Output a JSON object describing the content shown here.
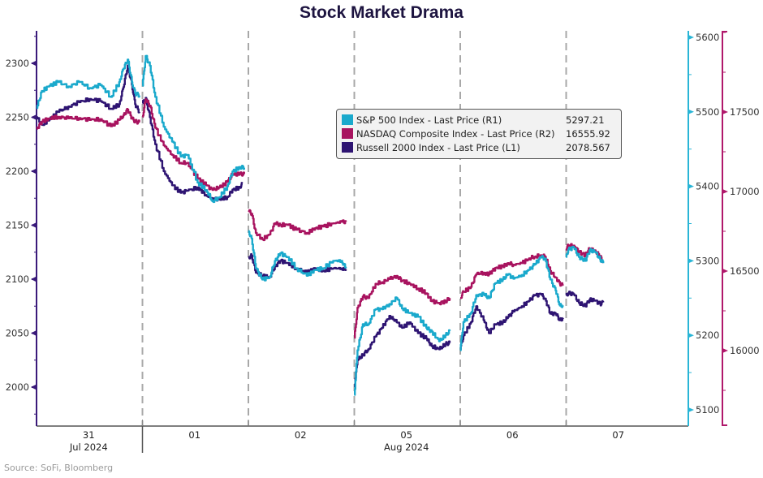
{
  "title": "Stock Market Drama",
  "source": "Source: SoFi, Bloomberg",
  "chart_data": {
    "type": "line",
    "title": "Stock Market Drama",
    "xlabel": "",
    "x_categories": [
      "31",
      "01",
      "02",
      "05",
      "06",
      "07"
    ],
    "x_group_labels": [
      {
        "at": "31",
        "label": "Jul 2024"
      },
      {
        "at": "05",
        "label": "Aug 2024"
      }
    ],
    "x_range": [
      0,
      6
    ],
    "grid": "vertical dashed lines at day boundaries",
    "legend_position": "top-center-right",
    "axes": {
      "L1": {
        "side": "left",
        "range": [
          1973,
          2328
        ],
        "ticks": [
          2000,
          2050,
          2100,
          2150,
          2200,
          2250,
          2300
        ],
        "color": "#3a1a7a"
      },
      "R1": {
        "side": "right",
        "range": [
          5093,
          5600
        ],
        "ticks": [
          5100,
          5200,
          5300,
          5400,
          5500,
          5600
        ],
        "color": "#29b5d6"
      },
      "R2": {
        "side": "right-outer",
        "range": [
          15958,
          17970
        ],
        "ticks": [
          16000,
          16500,
          17000,
          17500
        ],
        "color": "#b0186b"
      }
    },
    "series": [
      {
        "name": "S&P 500 Index - Last Price (R1)",
        "axis": "R1",
        "last": "5297.21",
        "color": "#1aa9cc",
        "points": [
          [
            0.0,
            5505
          ],
          [
            0.05,
            5528
          ],
          [
            0.12,
            5535
          ],
          [
            0.2,
            5540
          ],
          [
            0.3,
            5534
          ],
          [
            0.4,
            5540
          ],
          [
            0.5,
            5532
          ],
          [
            0.6,
            5536
          ],
          [
            0.7,
            5520
          ],
          [
            0.78,
            5540
          ],
          [
            0.82,
            5558
          ],
          [
            0.86,
            5570
          ],
          [
            0.9,
            5540
          ],
          [
            0.93,
            5525
          ],
          [
            0.97,
            5522
          ],
          [
            1.0,
            5535
          ],
          [
            1.03,
            5575
          ],
          [
            1.07,
            5562
          ],
          [
            1.12,
            5520
          ],
          [
            1.2,
            5480
          ],
          [
            1.28,
            5460
          ],
          [
            1.36,
            5440
          ],
          [
            1.42,
            5442
          ],
          [
            1.52,
            5405
          ],
          [
            1.6,
            5395
          ],
          [
            1.66,
            5380
          ],
          [
            1.72,
            5385
          ],
          [
            1.8,
            5400
          ],
          [
            1.85,
            5420
          ],
          [
            1.92,
            5426
          ],
          [
            1.96,
            5425
          ],
          [
            2.0,
            5340
          ],
          [
            2.03,
            5330
          ],
          [
            2.07,
            5290
          ],
          [
            2.13,
            5275
          ],
          [
            2.2,
            5278
          ],
          [
            2.25,
            5300
          ],
          [
            2.3,
            5310
          ],
          [
            2.37,
            5305
          ],
          [
            2.45,
            5290
          ],
          [
            2.55,
            5280
          ],
          [
            2.63,
            5288
          ],
          [
            2.7,
            5290
          ],
          [
            2.8,
            5300
          ],
          [
            2.88,
            5300
          ],
          [
            2.92,
            5290
          ],
          [
            3.0,
            5120
          ],
          [
            3.03,
            5180
          ],
          [
            3.08,
            5215
          ],
          [
            3.13,
            5215
          ],
          [
            3.2,
            5235
          ],
          [
            3.26,
            5235
          ],
          [
            3.33,
            5242
          ],
          [
            3.4,
            5250
          ],
          [
            3.45,
            5236
          ],
          [
            3.52,
            5230
          ],
          [
            3.6,
            5225
          ],
          [
            3.68,
            5210
          ],
          [
            3.73,
            5205
          ],
          [
            3.8,
            5192
          ],
          [
            3.86,
            5200
          ],
          [
            3.9,
            5206
          ],
          [
            4.0,
            5180
          ],
          [
            4.03,
            5218
          ],
          [
            4.1,
            5230
          ],
          [
            4.15,
            5254
          ],
          [
            4.22,
            5255
          ],
          [
            4.27,
            5250
          ],
          [
            4.33,
            5270
          ],
          [
            4.4,
            5275
          ],
          [
            4.45,
            5282
          ],
          [
            4.5,
            5276
          ],
          [
            4.58,
            5281
          ],
          [
            4.65,
            5288
          ],
          [
            4.7,
            5295
          ],
          [
            4.76,
            5305
          ],
          [
            4.8,
            5303
          ],
          [
            4.85,
            5275
          ],
          [
            4.9,
            5260
          ],
          [
            4.94,
            5240
          ],
          [
            4.97,
            5240
          ],
          [
            5.0,
            5305
          ],
          [
            5.02,
            5315
          ],
          [
            5.07,
            5318
          ],
          [
            5.12,
            5305
          ],
          [
            5.18,
            5300
          ],
          [
            5.22,
            5314
          ],
          [
            5.27,
            5312
          ],
          [
            5.32,
            5302
          ],
          [
            5.35,
            5297
          ]
        ]
      },
      {
        "name": "NASDAQ Composite Index - Last Price (R2)",
        "axis": "R2",
        "last": "16555.92",
        "color": "#a8135f",
        "points": [
          [
            0.0,
            17395
          ],
          [
            0.05,
            17440
          ],
          [
            0.12,
            17460
          ],
          [
            0.2,
            17470
          ],
          [
            0.3,
            17460
          ],
          [
            0.4,
            17462
          ],
          [
            0.5,
            17450
          ],
          [
            0.6,
            17455
          ],
          [
            0.7,
            17410
          ],
          [
            0.78,
            17450
          ],
          [
            0.82,
            17480
          ],
          [
            0.86,
            17515
          ],
          [
            0.9,
            17460
          ],
          [
            0.93,
            17440
          ],
          [
            0.97,
            17435
          ],
          [
            1.0,
            17470
          ],
          [
            1.03,
            17580
          ],
          [
            1.07,
            17540
          ],
          [
            1.12,
            17400
          ],
          [
            1.2,
            17290
          ],
          [
            1.28,
            17230
          ],
          [
            1.36,
            17180
          ],
          [
            1.42,
            17180
          ],
          [
            1.52,
            17080
          ],
          [
            1.6,
            17040
          ],
          [
            1.66,
            17010
          ],
          [
            1.72,
            17025
          ],
          [
            1.8,
            17060
          ],
          [
            1.85,
            17110
          ],
          [
            1.92,
            17110
          ],
          [
            1.96,
            17110
          ],
          [
            2.0,
            16880
          ],
          [
            2.03,
            16860
          ],
          [
            2.07,
            16740
          ],
          [
            2.13,
            16700
          ],
          [
            2.2,
            16730
          ],
          [
            2.25,
            16800
          ],
          [
            2.3,
            16790
          ],
          [
            2.37,
            16790
          ],
          [
            2.45,
            16760
          ],
          [
            2.55,
            16740
          ],
          [
            2.63,
            16770
          ],
          [
            2.7,
            16780
          ],
          [
            2.8,
            16800
          ],
          [
            2.88,
            16810
          ],
          [
            2.92,
            16810
          ],
          [
            3.0,
            16080
          ],
          [
            3.03,
            16270
          ],
          [
            3.08,
            16340
          ],
          [
            3.13,
            16330
          ],
          [
            3.2,
            16420
          ],
          [
            3.26,
            16430
          ],
          [
            3.33,
            16450
          ],
          [
            3.4,
            16470
          ],
          [
            3.45,
            16440
          ],
          [
            3.52,
            16420
          ],
          [
            3.6,
            16390
          ],
          [
            3.68,
            16360
          ],
          [
            3.73,
            16310
          ],
          [
            3.8,
            16300
          ],
          [
            3.86,
            16310
          ],
          [
            3.9,
            16330
          ],
          [
            4.0,
            16330
          ],
          [
            4.03,
            16370
          ],
          [
            4.1,
            16400
          ],
          [
            4.15,
            16480
          ],
          [
            4.22,
            16490
          ],
          [
            4.27,
            16480
          ],
          [
            4.33,
            16520
          ],
          [
            4.4,
            16530
          ],
          [
            4.45,
            16550
          ],
          [
            4.5,
            16540
          ],
          [
            4.58,
            16550
          ],
          [
            4.65,
            16580
          ],
          [
            4.7,
            16590
          ],
          [
            4.76,
            16600
          ],
          [
            4.8,
            16590
          ],
          [
            4.85,
            16500
          ],
          [
            4.9,
            16460
          ],
          [
            4.94,
            16420
          ],
          [
            4.97,
            16410
          ],
          [
            5.0,
            16640
          ],
          [
            5.02,
            16660
          ],
          [
            5.07,
            16660
          ],
          [
            5.12,
            16620
          ],
          [
            5.18,
            16600
          ],
          [
            5.22,
            16640
          ],
          [
            5.27,
            16630
          ],
          [
            5.32,
            16590
          ],
          [
            5.35,
            16556
          ]
        ]
      },
      {
        "name": "Russell 2000 Index - Last Price (L1)",
        "axis": "L1",
        "last": "2078.567",
        "color": "#2e1472",
        "points": [
          [
            0.0,
            2250
          ],
          [
            0.05,
            2243
          ],
          [
            0.12,
            2248
          ],
          [
            0.2,
            2255
          ],
          [
            0.3,
            2260
          ],
          [
            0.4,
            2264
          ],
          [
            0.5,
            2267
          ],
          [
            0.6,
            2265
          ],
          [
            0.7,
            2258
          ],
          [
            0.78,
            2262
          ],
          [
            0.82,
            2278
          ],
          [
            0.86,
            2298
          ],
          [
            0.9,
            2280
          ],
          [
            0.93,
            2262
          ],
          [
            0.97,
            2255
          ],
          [
            1.0,
            2263
          ],
          [
            1.03,
            2268
          ],
          [
            1.07,
            2250
          ],
          [
            1.12,
            2225
          ],
          [
            1.2,
            2200
          ],
          [
            1.28,
            2187
          ],
          [
            1.36,
            2180
          ],
          [
            1.42,
            2182
          ],
          [
            1.52,
            2185
          ],
          [
            1.6,
            2178
          ],
          [
            1.66,
            2175
          ],
          [
            1.72,
            2174
          ],
          [
            1.8,
            2176
          ],
          [
            1.85,
            2183
          ],
          [
            1.92,
            2185
          ],
          [
            1.94,
            2189
          ],
          [
            2.0,
            2120
          ],
          [
            2.03,
            2122
          ],
          [
            2.07,
            2106
          ],
          [
            2.13,
            2103
          ],
          [
            2.2,
            2102
          ],
          [
            2.25,
            2112
          ],
          [
            2.3,
            2117
          ],
          [
            2.37,
            2115
          ],
          [
            2.45,
            2110
          ],
          [
            2.55,
            2106
          ],
          [
            2.63,
            2110
          ],
          [
            2.7,
            2108
          ],
          [
            2.8,
            2110
          ],
          [
            2.88,
            2110
          ],
          [
            2.92,
            2109
          ],
          [
            3.0,
            2000
          ],
          [
            3.03,
            2025
          ],
          [
            3.08,
            2030
          ],
          [
            3.13,
            2035
          ],
          [
            3.2,
            2047
          ],
          [
            3.26,
            2055
          ],
          [
            3.33,
            2066
          ],
          [
            3.4,
            2060
          ],
          [
            3.45,
            2055
          ],
          [
            3.52,
            2060
          ],
          [
            3.6,
            2050
          ],
          [
            3.68,
            2045
          ],
          [
            3.73,
            2038
          ],
          [
            3.8,
            2035
          ],
          [
            3.86,
            2040
          ],
          [
            3.9,
            2041
          ],
          [
            4.0,
            2035
          ],
          [
            4.03,
            2048
          ],
          [
            4.1,
            2060
          ],
          [
            4.15,
            2075
          ],
          [
            4.22,
            2062
          ],
          [
            4.27,
            2050
          ],
          [
            4.33,
            2058
          ],
          [
            4.4,
            2060
          ],
          [
            4.45,
            2065
          ],
          [
            4.5,
            2070
          ],
          [
            4.58,
            2075
          ],
          [
            4.65,
            2080
          ],
          [
            4.7,
            2085
          ],
          [
            4.76,
            2086
          ],
          [
            4.8,
            2082
          ],
          [
            4.85,
            2068
          ],
          [
            4.9,
            2068
          ],
          [
            4.94,
            2062
          ],
          [
            4.97,
            2064
          ],
          [
            5.0,
            2085
          ],
          [
            5.02,
            2087
          ],
          [
            5.07,
            2086
          ],
          [
            5.12,
            2078
          ],
          [
            5.18,
            2075
          ],
          [
            5.22,
            2081
          ],
          [
            5.27,
            2080
          ],
          [
            5.32,
            2077
          ],
          [
            5.35,
            2078.6
          ]
        ]
      }
    ]
  },
  "legend": {
    "items": [
      {
        "label": "S&P 500 Index - Last Price (R1)",
        "value": "5297.21",
        "color": "#1aa9cc"
      },
      {
        "label": "NASDAQ Composite Index - Last Price (R2)",
        "value": "16555.92",
        "color": "#a8135f"
      },
      {
        "label": "Russell 2000 Index - Last Price (L1)",
        "value": "2078.567",
        "color": "#2e1472"
      }
    ]
  }
}
